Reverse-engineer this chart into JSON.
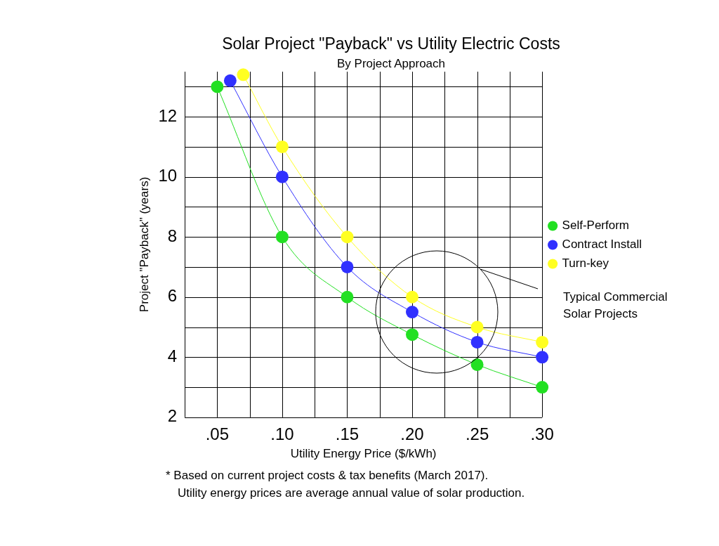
{
  "chart_data": {
    "type": "line",
    "title": "Solar Project \"Payback\" vs Utility Electric Costs",
    "subtitle": "By Project Approach",
    "xlabel": "Utility Energy Price ($/kWh)",
    "ylabel": "Project \"Payback\" (years)",
    "xlim": [
      0.025,
      0.3
    ],
    "xticks": [
      {
        "value": 0.025,
        "label": null
      },
      {
        "value": 0.05,
        "label": ".05"
      },
      {
        "value": 0.075,
        "label": null
      },
      {
        "value": 0.1,
        "label": ".10"
      },
      {
        "value": 0.125,
        "label": null
      },
      {
        "value": 0.15,
        "label": ".15"
      },
      {
        "value": 0.175,
        "label": null
      },
      {
        "value": 0.2,
        "label": ".20"
      },
      {
        "value": 0.225,
        "label": null
      },
      {
        "value": 0.25,
        "label": ".25"
      },
      {
        "value": 0.275,
        "label": null
      },
      {
        "value": 0.3,
        "label": ".30"
      }
    ],
    "ylim": [
      2,
      13.5
    ],
    "yticks": [
      2,
      {
        "value": 3,
        "label": null
      },
      4,
      {
        "value": 5,
        "label": null
      },
      6,
      {
        "value": 7,
        "label": null
      },
      8,
      {
        "value": 9,
        "label": null
      },
      10,
      {
        "value": 11,
        "label": null
      },
      12,
      {
        "value": 13,
        "label": null
      }
    ],
    "grid": true,
    "legend": "right",
    "marker": "circle",
    "line_style": "solid",
    "series": [
      {
        "name": "Self-Perform",
        "color": "#22e022",
        "x": [
          0.05,
          0.1,
          0.15,
          0.2,
          0.25,
          0.3
        ],
        "values": [
          13,
          8,
          6,
          4.75,
          3.75,
          3
        ]
      },
      {
        "name": "Contract Install",
        "color": "#3030ff",
        "x": [
          0.06,
          0.1,
          0.15,
          0.2,
          0.25,
          0.3
        ],
        "values": [
          13.2,
          10,
          7,
          5.5,
          4.5,
          4
        ]
      },
      {
        "name": "Turn-key",
        "color": "#ffff22",
        "x": [
          0.07,
          0.1,
          0.15,
          0.2,
          0.25,
          0.3
        ],
        "values": [
          13.4,
          11,
          8,
          6,
          5,
          4.5
        ]
      }
    ],
    "annotations": [
      "Typical Commercial\nSolar Projects",
      "* Based on current project costs & tax benefits (March 2017).",
      "Utility energy prices are average annual value of solar production."
    ]
  }
}
